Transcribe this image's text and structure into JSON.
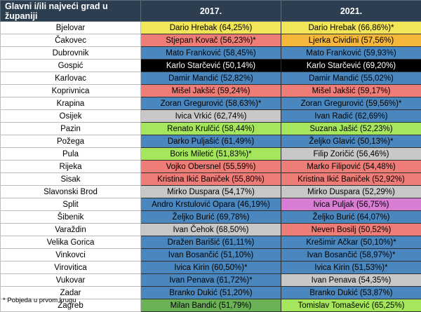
{
  "header": {
    "col1": "Glavni i/ili najveći grad u županiji",
    "col2": "2017.",
    "col3": "2021."
  },
  "colors": {
    "blue": "#4a87be",
    "red": "#ee7c77",
    "yellow": "#f2e658",
    "orange": "#f4b73c",
    "black": "#000000",
    "gray": "#c8c8c8",
    "lime": "#a6e65c",
    "green": "#6bb257",
    "pink": "#d97dd4",
    "header_bg": "#2c3e50"
  },
  "rows": [
    {
      "city": "Bjelovar",
      "y2017": "Dario Hrebak (64,25%)",
      "c2017": "yellow",
      "y2021": "Dario Hrebak (66,86%)*",
      "c2021": "yellow"
    },
    {
      "city": "Čakovec",
      "y2017": "Stjepan Kovač (56,23%)*",
      "c2017": "red",
      "y2021": "Ljerka Cividini (57,56%)",
      "c2021": "orange"
    },
    {
      "city": "Dubrovnik",
      "y2017": "Mato Franković (58,45%)",
      "c2017": "blue",
      "y2021": "Mato Franković (59,93%)",
      "c2021": "blue"
    },
    {
      "city": "Gospić",
      "y2017": "Karlo Starčević (50,14%)",
      "c2017": "black",
      "y2021": "Karlo Starčević (69,20%)",
      "c2021": "black"
    },
    {
      "city": "Karlovac",
      "y2017": "Damir Mandić (52,82%)",
      "c2017": "blue",
      "y2021": "Damir Mandić (55,02%)",
      "c2021": "blue"
    },
    {
      "city": "Koprivnica",
      "y2017": "Mišel Jakšić (59,24%)",
      "c2017": "red",
      "y2021": "Mišel Jakšić (59,17%)",
      "c2021": "red"
    },
    {
      "city": "Krapina",
      "y2017": "Zoran Gregurović (58,63%)*",
      "c2017": "blue",
      "y2021": "Zoran Gregurović (59,56%)*",
      "c2021": "blue"
    },
    {
      "city": "Osijek",
      "y2017": "Ivica Vrkić (62,74%)",
      "c2017": "gray",
      "y2021": "Ivan Radić (62,69%)",
      "c2021": "blue"
    },
    {
      "city": "Pazin",
      "y2017": "Renato Krulčić (58,44%)",
      "c2017": "lime",
      "y2021": "Suzana Jašić (52,23%)",
      "c2021": "lime"
    },
    {
      "city": "Požega",
      "y2017": "Darko Puljašić (61,49%)",
      "c2017": "blue",
      "y2021": "Željko Glavić (50,13%)*",
      "c2021": "blue"
    },
    {
      "city": "Pula",
      "y2017": "Boris Miletić (51,83%)*",
      "c2017": "lime",
      "y2021": "Filip Zoričić (56,46%)",
      "c2021": "gray"
    },
    {
      "city": "Rijeka",
      "y2017": "Vojko Obersnel (55,59%)",
      "c2017": "red",
      "y2021": "Marko Filipović (54,48%)",
      "c2021": "red"
    },
    {
      "city": "Sisak",
      "y2017": "Kristina Ikić Baniček (55,80%)",
      "c2017": "red",
      "y2021": "Kristina Ikić Baniček (52,92%)",
      "c2021": "red"
    },
    {
      "city": "Slavonski Brod",
      "y2017": "Mirko Duspara (54,17%)",
      "c2017": "gray",
      "y2021": "Mirko Duspara (52,29%)",
      "c2021": "gray"
    },
    {
      "city": "Split",
      "y2017": "Andro Krstulović Opara (46,19%)",
      "c2017": "blue",
      "y2021": "Ivica Puljak (56,75%)",
      "c2021": "pink"
    },
    {
      "city": "Šibenik",
      "y2017": "Željko Burić (69,78%)",
      "c2017": "blue",
      "y2021": "Željko Burić (64,07%)",
      "c2021": "blue"
    },
    {
      "city": "Varaždin",
      "y2017": "Ivan Čehok (68,50%)",
      "c2017": "gray",
      "y2021": "Neven Bosilj (50,52%)",
      "c2021": "red"
    },
    {
      "city": "Velika Gorica",
      "y2017": "Dražen Barišić (61,11%)",
      "c2017": "blue",
      "y2021": "Krešimir Ačkar (50,10%)*",
      "c2021": "blue"
    },
    {
      "city": "Vinkovci",
      "y2017": "Ivan Bosančić (51,10%)",
      "c2017": "blue",
      "y2021": "Ivan Bosančić (58,97%)*",
      "c2021": "blue"
    },
    {
      "city": "Virovitica",
      "y2017": "Ivica Kirin (60,50%)*",
      "c2017": "blue",
      "y2021": "Ivica Kirin (51,53%)*",
      "c2021": "blue"
    },
    {
      "city": "Vukovar",
      "y2017": "Ivan Penava (61,72%)*",
      "c2017": "blue",
      "y2021": "Ivan Penava (54,35%)",
      "c2021": "gray"
    },
    {
      "city": "Zadar",
      "y2017": "Branko Dukić (51,20%)",
      "c2017": "blue",
      "y2021": "Branko Dukić (53,87%)",
      "c2021": "blue"
    },
    {
      "city": "Zagreb",
      "y2017": "Milan Bandić (51,79%)",
      "c2017": "green",
      "y2021": "Tomislav Tomašević (65,25%)",
      "c2021": "lime"
    }
  ],
  "footnote": "* Pobjeda u prvom krugu"
}
